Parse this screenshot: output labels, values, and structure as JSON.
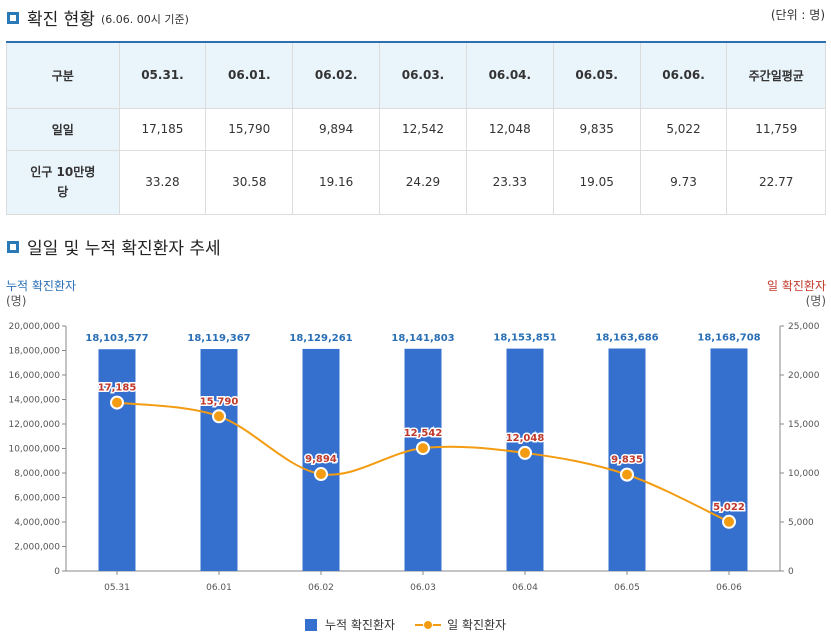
{
  "section1": {
    "title": "확진 현황",
    "subtitle": "(6.06. 00시 기준)",
    "unit_note": "(단위 : 명)"
  },
  "table": {
    "header": [
      "구분",
      "05.31.",
      "06.01.",
      "06.02.",
      "06.03.",
      "06.04.",
      "06.05.",
      "06.06.",
      "주간일평균"
    ],
    "rows": [
      [
        "일일",
        "17,185",
        "15,790",
        "9,894",
        "12,542",
        "12,048",
        "9,835",
        "5,022",
        "11,759"
      ],
      [
        "인구 10만명당",
        "33.28",
        "30.58",
        "19.16",
        "24.29",
        "23.33",
        "19.05",
        "9.73",
        "22.77"
      ]
    ]
  },
  "section2": {
    "title": "일일 및 누적 확진환자 추세"
  },
  "left_axis_title": "누적 확진환자",
  "left_axis_unit": "(명)",
  "right_axis_title": "일 확진환자",
  "right_axis_unit": "(명)",
  "legend": {
    "bar": "누적 확진환자",
    "line": "일 확진환자"
  },
  "colors": {
    "bar": "#3570cf",
    "line": "#f39c12",
    "bar_label": "#2a6fb5",
    "point_label": "#c0392b",
    "table_header_bg": "#eaf4fb"
  },
  "chart_data": {
    "type": "bar",
    "categories": [
      "05.31",
      "06.01",
      "06.02",
      "06.03",
      "06.04",
      "06.05",
      "06.06"
    ],
    "series": [
      {
        "name": "누적 확진환자",
        "type": "bar",
        "axis": "left",
        "values": [
          18103577,
          18119367,
          18129261,
          18141803,
          18153851,
          18163686,
          18168708
        ],
        "labels": [
          "18,103,577",
          "18,119,367",
          "18,129,261",
          "18,141,803",
          "18,153,851",
          "18,163,686",
          "18,168,708"
        ]
      },
      {
        "name": "일 확진환자",
        "type": "line",
        "axis": "right",
        "values": [
          17185,
          15790,
          9894,
          12542,
          12048,
          9835,
          5022
        ],
        "labels": [
          "17,185",
          "15,790",
          "9,894",
          "12,542",
          "12,048",
          "9,835",
          "5,022"
        ]
      }
    ],
    "left_ylim": [
      0,
      20000000
    ],
    "left_ticks": [
      "20,000,000",
      "18,000,000",
      "16,000,000",
      "14,000,000",
      "12,000,000",
      "10,000,000",
      "8,000,000",
      "6,000,000",
      "4,000,000",
      "2,000,000",
      "0"
    ],
    "right_ylim": [
      0,
      25000
    ],
    "right_ticks": [
      "25,000",
      "20,000",
      "15,000",
      "10,000",
      "5,000",
      "0"
    ],
    "grid": false,
    "legend_position": "bottom"
  }
}
